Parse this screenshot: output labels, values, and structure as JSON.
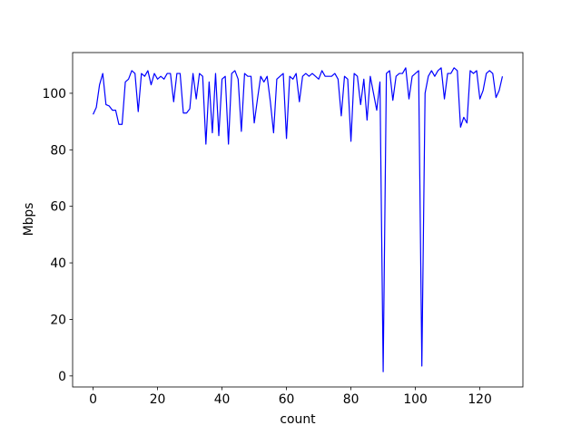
{
  "chart_data": {
    "type": "line",
    "x_label": "count",
    "y_label": "Mbps",
    "x": [
      0,
      1,
      2,
      3,
      4,
      5,
      6,
      7,
      8,
      9,
      10,
      11,
      12,
      13,
      14,
      15,
      16,
      17,
      18,
      19,
      20,
      21,
      22,
      23,
      24,
      25,
      26,
      27,
      28,
      29,
      30,
      31,
      32,
      33,
      34,
      35,
      36,
      37,
      38,
      39,
      40,
      41,
      42,
      43,
      44,
      45,
      46,
      47,
      48,
      49,
      50,
      51,
      52,
      53,
      54,
      55,
      56,
      57,
      58,
      59,
      60,
      61,
      62,
      63,
      64,
      65,
      66,
      67,
      68,
      69,
      70,
      71,
      72,
      73,
      74,
      75,
      76,
      77,
      78,
      79,
      80,
      81,
      82,
      83,
      84,
      85,
      86,
      87,
      88,
      89,
      90,
      91,
      92,
      93,
      94,
      95,
      96,
      97,
      98,
      99,
      100,
      101,
      102,
      103,
      104,
      105,
      106,
      107,
      108,
      109,
      110,
      111,
      112,
      113,
      114,
      115,
      116,
      117,
      118,
      119,
      120,
      121,
      122,
      123,
      124,
      125,
      126,
      127
    ],
    "series": [
      {
        "color": "#0000ff",
        "values": [
          92.5,
          95,
          103,
          107,
          96,
          95.5,
          94,
          94,
          89,
          89,
          104,
          105,
          108,
          107,
          93.5,
          107,
          106,
          108,
          103,
          107,
          105,
          106,
          105,
          107,
          107,
          97,
          107,
          107,
          93,
          93,
          94.5,
          107,
          98,
          107,
          106,
          82,
          104,
          86,
          107,
          85,
          105,
          106,
          82,
          107,
          108,
          105,
          86.5,
          107,
          106,
          106,
          89.5,
          98,
          106,
          104,
          106,
          97,
          86,
          105,
          106,
          107,
          84,
          106,
          105,
          107,
          97,
          106,
          107,
          106,
          107,
          106,
          105,
          108,
          106,
          106,
          106,
          107,
          105,
          92,
          106,
          105,
          83,
          107,
          106,
          96,
          105,
          90.5,
          106,
          100,
          94,
          104,
          1.5,
          107,
          108,
          97.5,
          106,
          107,
          107,
          109,
          98,
          106,
          107,
          108,
          3.5,
          100,
          106,
          108,
          106,
          108,
          109,
          98,
          107,
          107,
          109,
          108,
          88,
          91.5,
          89.5,
          108,
          107,
          108,
          98,
          101,
          107,
          108,
          107,
          98.5,
          101,
          106
        ]
      }
    ],
    "xlim": [
      -6.35,
      133.35
    ],
    "ylim": [
      -3.9,
      114.4
    ],
    "xticks": [
      0,
      20,
      40,
      60,
      80,
      100,
      120
    ],
    "yticks": [
      0,
      20,
      40,
      60,
      80,
      100
    ]
  }
}
